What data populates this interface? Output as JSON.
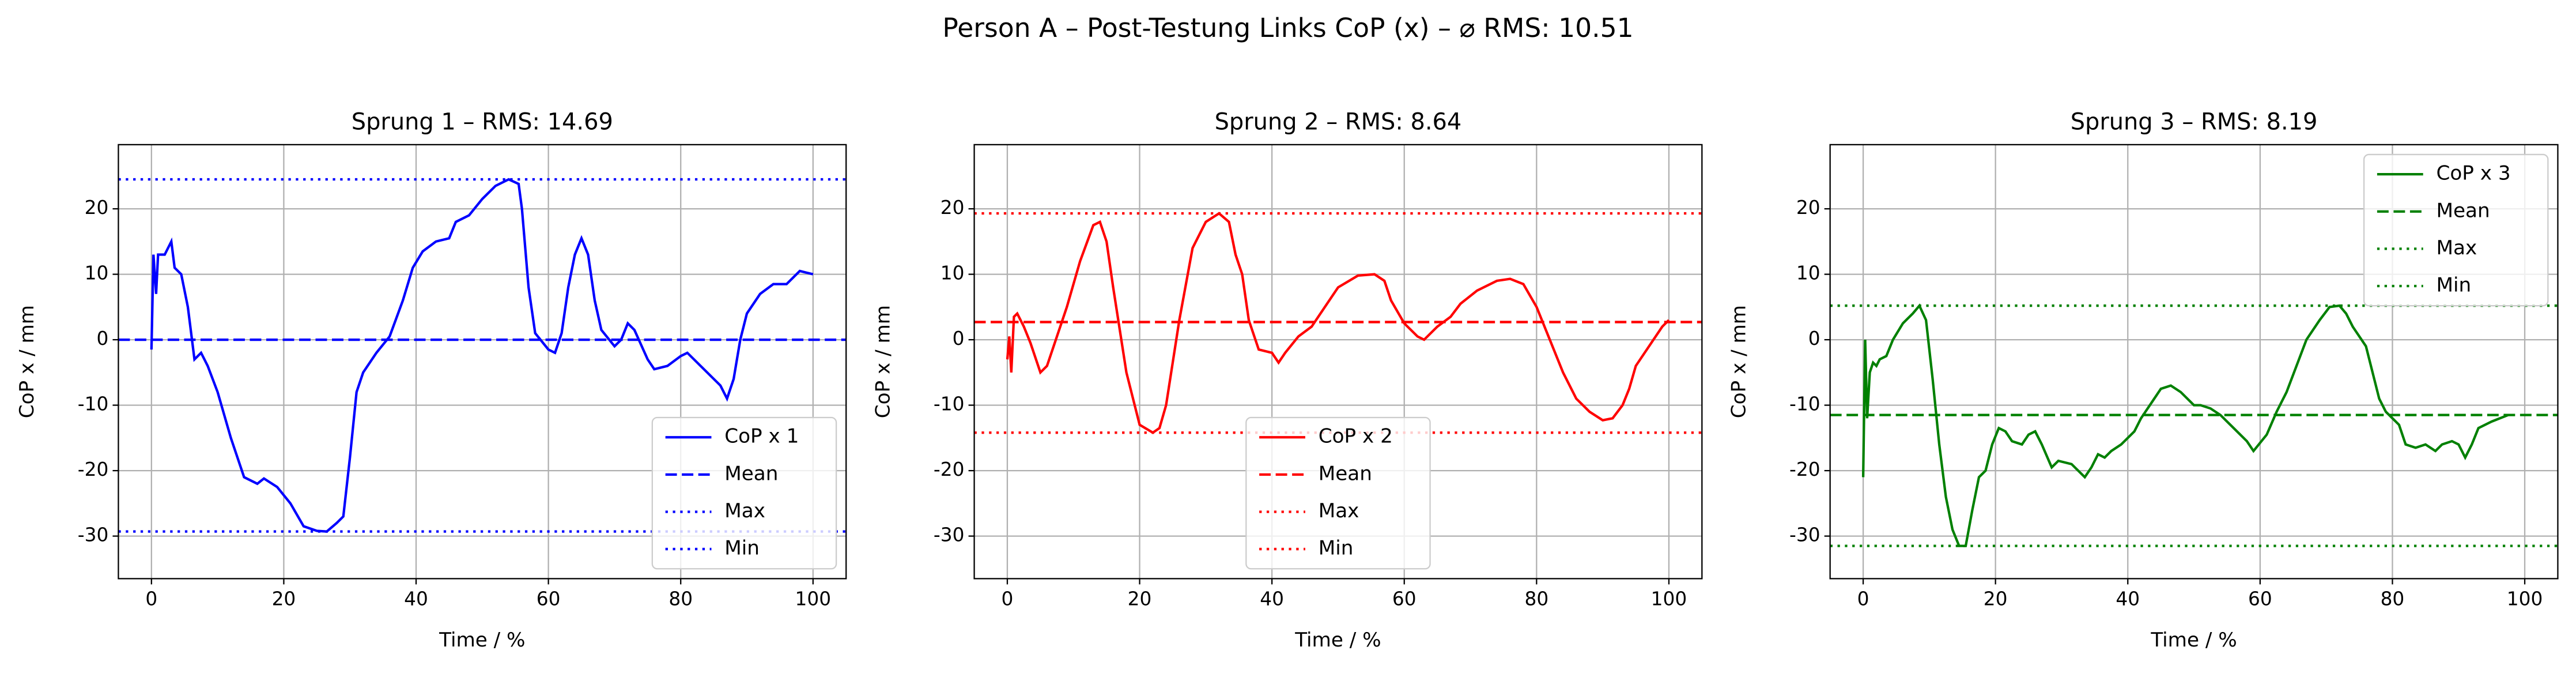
{
  "title": "Person A – Post-Testung Links CoP (x) – ⌀ RMS: 10.51",
  "chart_data": [
    {
      "type": "line",
      "title": "Sprung 1 – RMS: 14.69",
      "x_label": "Time / %",
      "y_label": "CoP x / mm",
      "xlim": [
        -5,
        105
      ],
      "ylim": [
        -36.5,
        29.8
      ],
      "xticks": [
        0,
        20,
        40,
        60,
        80,
        100
      ],
      "yticks": [
        -30,
        -20,
        -10,
        0,
        10,
        20
      ],
      "grid": true,
      "legend": "lower right",
      "series": [
        {
          "name": "CoP x 1",
          "color": "#0000ff",
          "style": "solid",
          "x": [
            0,
            0.3,
            0.7,
            1,
            2,
            3,
            3.5,
            4.5,
            5.5,
            6.5,
            7.5,
            8.5,
            10,
            12,
            14,
            16,
            17,
            19,
            21,
            23,
            25,
            26.5,
            28,
            29,
            30,
            31,
            32,
            34,
            36,
            38,
            39.5,
            41,
            43,
            45,
            46,
            48,
            50,
            52,
            54,
            55.5,
            56,
            57,
            58,
            60,
            61,
            62,
            63,
            64,
            65,
            66,
            67,
            68,
            70,
            71,
            72,
            73,
            75,
            76,
            78,
            80,
            81,
            83,
            86,
            87,
            88,
            89,
            90,
            92,
            94,
            96,
            98,
            100
          ],
          "values": [
            -1.5,
            13,
            7,
            13,
            13,
            15,
            11,
            10,
            5,
            -3,
            -2,
            -4,
            -8,
            -15,
            -21,
            -22,
            -21.2,
            -22.5,
            -25,
            -28.5,
            -29.2,
            -29.3,
            -28,
            -27,
            -18,
            -8,
            -5,
            -2,
            0.5,
            6,
            11,
            13.5,
            15,
            15.5,
            18,
            19,
            21.5,
            23.5,
            24.5,
            23.8,
            20,
            8,
            1,
            -1.5,
            -2,
            1,
            8,
            13,
            15.5,
            13,
            6,
            1.5,
            -1,
            0,
            2.5,
            1.5,
            -3,
            -4.5,
            -4,
            -2.5,
            -2,
            -4,
            -7,
            -9,
            -6,
            0,
            4,
            7,
            8.5,
            8.5,
            10.5,
            10
          ]
        },
        {
          "name": "Mean",
          "color": "#0000ff",
          "style": "dashed",
          "value": 0
        },
        {
          "name": "Max",
          "color": "#0000ff",
          "style": "dotted",
          "value": 24.5
        },
        {
          "name": "Min",
          "color": "#0000ff",
          "style": "dotted",
          "value": -29.3
        }
      ]
    },
    {
      "type": "line",
      "title": "Sprung 2 – RMS: 8.64",
      "x_label": "Time / %",
      "y_label": "CoP x / mm",
      "xlim": [
        -5,
        105
      ],
      "ylim": [
        -36.5,
        29.8
      ],
      "xticks": [
        0,
        20,
        40,
        60,
        80,
        100
      ],
      "yticks": [
        -30,
        -20,
        -10,
        0,
        10,
        20
      ],
      "grid": true,
      "legend": "lower center",
      "series": [
        {
          "name": "CoP x 2",
          "color": "#ff0000",
          "style": "solid",
          "x": [
            0,
            0.3,
            0.6,
            1,
            1.5,
            2.5,
            3.5,
            5,
            6,
            7,
            9,
            11,
            13,
            14,
            15,
            16,
            18,
            20,
            22,
            23,
            24,
            26,
            28,
            30,
            32,
            33.5,
            34.5,
            35.5,
            36.5,
            38,
            40,
            41,
            42,
            44,
            46,
            48,
            50,
            53,
            55.5,
            57,
            58,
            60,
            62,
            63,
            65,
            67,
            68.5,
            71,
            74,
            76,
            78,
            80,
            82,
            84,
            86,
            88,
            90,
            91.5,
            93,
            94,
            95,
            97,
            99,
            100
          ],
          "values": [
            -3,
            0.5,
            -5,
            3.5,
            4,
            2,
            -0.5,
            -5,
            -4,
            -1,
            5,
            12,
            17.5,
            18,
            15,
            8,
            -5,
            -13,
            -14.2,
            -13.5,
            -10,
            3,
            14,
            18,
            19.3,
            18,
            13,
            10,
            3,
            -1.5,
            -2,
            -3.5,
            -2,
            0.5,
            2,
            5,
            8,
            9.8,
            10,
            9,
            6,
            2.5,
            0.5,
            0,
            2,
            3.5,
            5.5,
            7.5,
            9,
            9.3,
            8.5,
            5,
            0,
            -5,
            -9,
            -11,
            -12.3,
            -12,
            -10,
            -7.5,
            -4,
            -1,
            2,
            3
          ]
        },
        {
          "name": "Mean",
          "color": "#ff0000",
          "style": "dashed",
          "value": 2.7
        },
        {
          "name": "Max",
          "color": "#ff0000",
          "style": "dotted",
          "value": 19.3
        },
        {
          "name": "Min",
          "color": "#ff0000",
          "style": "dotted",
          "value": -14.2
        }
      ]
    },
    {
      "type": "line",
      "title": "Sprung 3 – RMS: 8.19",
      "x_label": "Time / %",
      "y_label": "CoP x / mm",
      "xlim": [
        -5,
        105
      ],
      "ylim": [
        -36.5,
        29.8
      ],
      "xticks": [
        0,
        20,
        40,
        60,
        80,
        100
      ],
      "yticks": [
        -30,
        -20,
        -10,
        0,
        10,
        20
      ],
      "grid": true,
      "legend": "upper right",
      "series": [
        {
          "name": "CoP x 3",
          "color": "#008000",
          "style": "solid",
          "x": [
            0,
            0.3,
            0.6,
            1,
            1.5,
            2,
            2.5,
            3.5,
            4.5,
            6,
            7.5,
            8.5,
            9.5,
            10.5,
            11.5,
            12.5,
            13.5,
            14.5,
            15.5,
            16.5,
            17.5,
            18.5,
            19.5,
            20.5,
            21.5,
            22.5,
            24,
            25,
            26,
            27,
            28.5,
            29.5,
            31.5,
            32.5,
            33.5,
            34.5,
            35.5,
            36.5,
            37.5,
            39,
            41,
            42,
            44,
            45,
            46.5,
            48,
            50,
            51,
            52.5,
            54,
            56,
            58,
            59,
            61,
            62.5,
            64,
            65.5,
            67,
            69,
            70.5,
            72,
            73,
            74,
            76,
            77,
            78,
            79,
            80,
            81,
            82,
            83.5,
            85,
            86.5,
            87.5,
            89,
            90,
            91,
            92,
            93,
            95,
            97.5
          ],
          "values": [
            -21,
            0,
            -12,
            -5,
            -3.5,
            -4,
            -3,
            -2.5,
            0,
            2.5,
            4,
            5.2,
            3,
            -6,
            -16,
            -24,
            -29,
            -31.5,
            -31.5,
            -26,
            -21,
            -20,
            -16,
            -13.5,
            -14,
            -15.5,
            -16,
            -14.5,
            -14,
            -16,
            -19.5,
            -18.5,
            -19,
            -20,
            -21,
            -19.5,
            -17.5,
            -18,
            -17,
            -16,
            -14,
            -12,
            -9,
            -7.5,
            -7,
            -8,
            -10,
            -10,
            -10.5,
            -11.5,
            -13.5,
            -15.5,
            -17,
            -14.5,
            -11,
            -8,
            -4,
            0,
            3,
            5,
            5.2,
            4,
            2,
            -1,
            -5,
            -9,
            -11,
            -12,
            -13,
            -16,
            -16.5,
            -16,
            -17,
            -16,
            -15.5,
            -16,
            -18,
            -16,
            -13.5,
            -12.5,
            -11.5
          ]
        },
        {
          "name": "Mean",
          "color": "#008000",
          "style": "dashed",
          "value": -11.5
        },
        {
          "name": "Max",
          "color": "#008000",
          "style": "dotted",
          "value": 5.2
        },
        {
          "name": "Min",
          "color": "#008000",
          "style": "dotted",
          "value": -31.5
        }
      ]
    }
  ]
}
